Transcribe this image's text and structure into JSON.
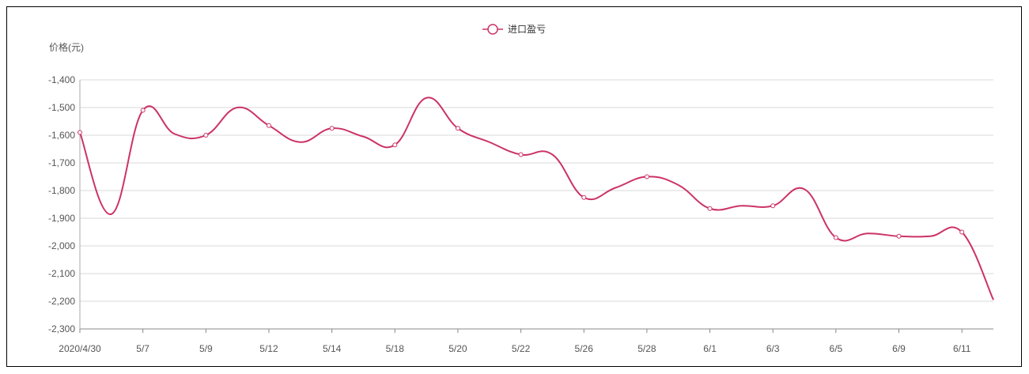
{
  "chart_data": {
    "type": "line",
    "ylabel": "价格(元)",
    "ylim": [
      -2300,
      -1400
    ],
    "y_ticks": [
      "-1,400",
      "-1,500",
      "-1,600",
      "-1,700",
      "-1,800",
      "-1,900",
      "-2,000",
      "-2,100",
      "-2,200",
      "-2,300"
    ],
    "x_tick_labels": [
      "2020/4/30",
      "5/7",
      "5/9",
      "5/12",
      "5/14",
      "5/18",
      "5/20",
      "5/22",
      "5/26",
      "5/28",
      "6/1",
      "6/3",
      "6/5",
      "6/9",
      "6/11"
    ],
    "grid": true,
    "legend_position": "top-center",
    "series": [
      {
        "name": "进口盈亏",
        "color": "#cc3366",
        "x": [
          "2020/4/30",
          "5/6",
          "5/7",
          "5/8",
          "5/9",
          "5/11",
          "5/12",
          "5/13",
          "5/14",
          "5/15",
          "5/18",
          "5/19",
          "5/20",
          "5/21",
          "5/22",
          "5/25",
          "5/26",
          "5/27",
          "5/28",
          "5/29",
          "6/1",
          "6/2",
          "6/3",
          "6/4",
          "6/5",
          "6/8",
          "6/9",
          "6/10",
          "6/11",
          "6/12"
        ],
        "values": [
          -1590,
          -1885,
          -1510,
          -1595,
          -1600,
          -1500,
          -1565,
          -1625,
          -1575,
          -1605,
          -1635,
          -1465,
          -1575,
          -1625,
          -1670,
          -1670,
          -1825,
          -1790,
          -1750,
          -1780,
          -1865,
          -1855,
          -1855,
          -1795,
          -1970,
          -1955,
          -1965,
          -1965,
          -1950,
          -2195
        ]
      }
    ]
  }
}
